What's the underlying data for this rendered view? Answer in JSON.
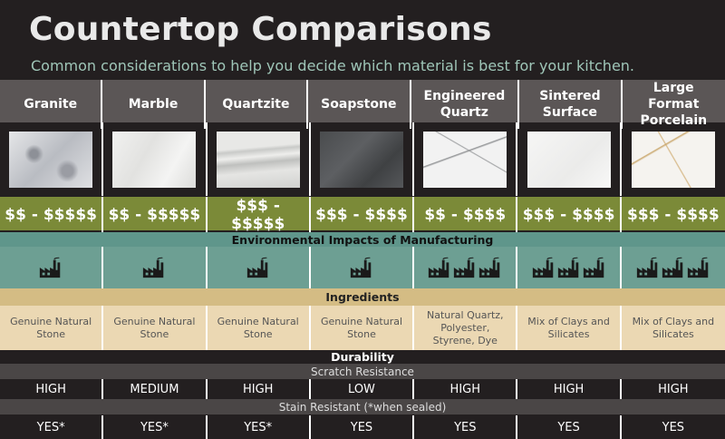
{
  "header": {
    "title": "Countertop Comparisons",
    "subtitle": "Common considerations to help you decide which material is best for your kitchen."
  },
  "sections": {
    "environment": "Environmental Impacts of Manufacturing",
    "ingredients": "Ingredients",
    "durability": "Durability",
    "scratch": "Scratch Resistance",
    "stain": "Stain Resistant (*when sealed)"
  },
  "materials": [
    {
      "name": "Granite",
      "price": "$$ - $$$$$",
      "ingredients": "Genuine Natural Stone",
      "scratch": "HIGH",
      "stain": "YES*"
    },
    {
      "name": "Marble",
      "price": "$$ - $$$$$",
      "ingredients": "Genuine Natural Stone",
      "scratch": "MEDIUM",
      "stain": "YES*"
    },
    {
      "name": "Quartzite",
      "price": "$$$ - $$$$$",
      "ingredients": "Genuine Natural Stone",
      "scratch": "HIGH",
      "stain": "YES*"
    },
    {
      "name": "Soapstone",
      "price": "$$$ - $$$$",
      "ingredients": "Genuine Natural Stone",
      "scratch": "LOW",
      "stain": "YES"
    },
    {
      "name": "Engineered Quartz",
      "price": "$$ - $$$$",
      "ingredients": "Natural Quartz, Polyester, Styrene, Dye",
      "scratch": "HIGH",
      "stain": "YES"
    },
    {
      "name": "Sintered Surface",
      "price": "$$$ - $$$$",
      "ingredients": "Mix of Clays and Silicates",
      "scratch": "HIGH",
      "stain": "YES"
    },
    {
      "name": "Large Format Porcelain",
      "price": "$$$ - $$$$",
      "ingredients": "Mix of Clays and Silicates",
      "scratch": "HIGH",
      "stain": "YES"
    }
  ]
}
